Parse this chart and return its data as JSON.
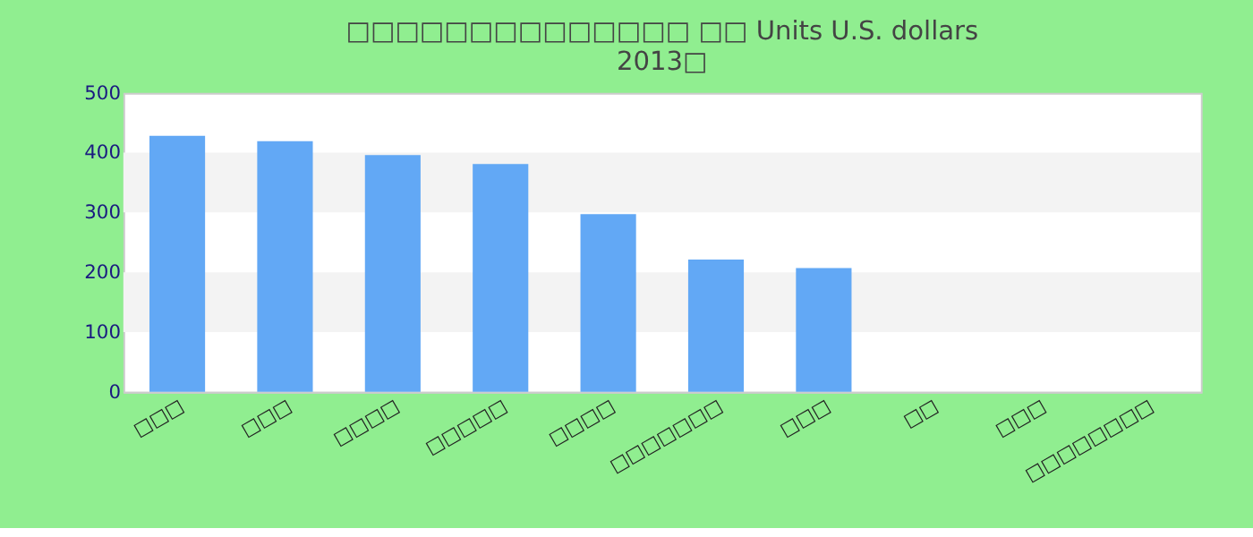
{
  "chart_data": {
    "type": "bar",
    "title": "□□□□□□□□□□□□□□ □□ Units U.S. dollars",
    "subtitle": "2013□",
    "categories": [
      "□□□",
      "□□□",
      "□□□□",
      "□□□□□",
      "□□□□",
      "□□□□□□□",
      "□□□",
      "□□",
      "□□□",
      "□□□□□□□□"
    ],
    "values": [
      428,
      419,
      396,
      381,
      297,
      221,
      207,
      null,
      null,
      null
    ],
    "color": "#62a8f5",
    "ylim": [
      0,
      500
    ],
    "yticks": [
      0,
      100,
      200,
      300,
      400,
      500
    ],
    "bands": [
      {
        "axis": "y",
        "from": 100,
        "to": 200,
        "color": "#f3f3f3"
      },
      {
        "axis": "y",
        "from": 300,
        "to": 400,
        "color": "#f3f3f3"
      }
    ]
  }
}
